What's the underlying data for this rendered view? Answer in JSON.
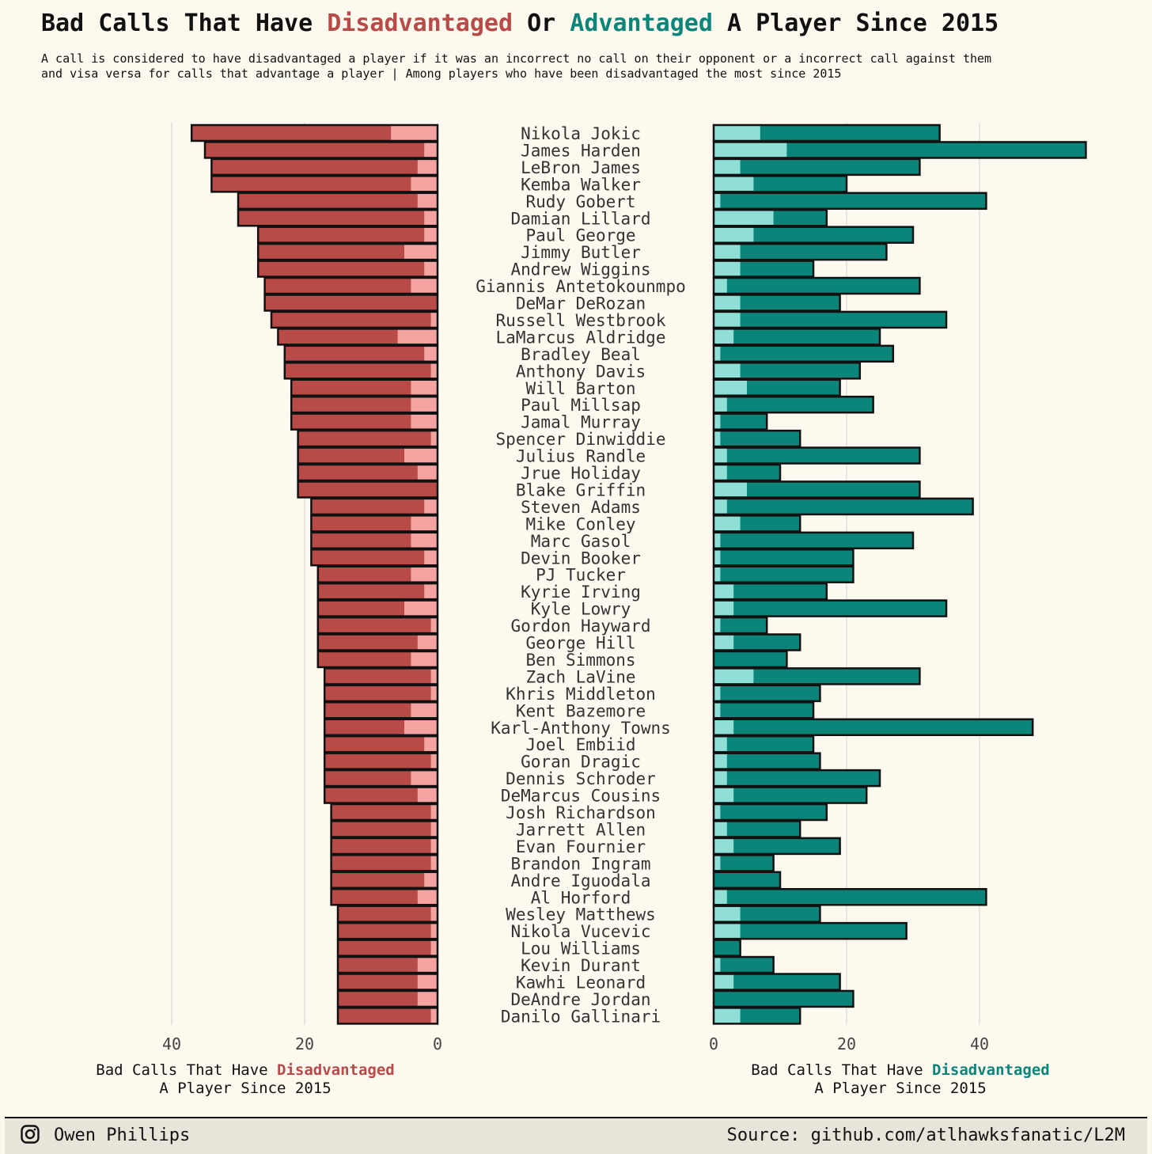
{
  "title": {
    "part1": "Bad Calls That Have ",
    "part2": "Disadvantaged",
    "part3": " Or ",
    "part4": "Advantaged",
    "part5": " A Player Since 2015"
  },
  "subtitle": {
    "line1": "A call is considered to have disadvantaged a player if it was an incorrect no call on their opponent or a incorrect call against them",
    "line2": "and visa versa for calls that advantage a player | Among players who have been disadvantaged the most since 2015"
  },
  "left_axis_title": {
    "part1": "Bad Calls That Have ",
    "part2": "Disadvantaged",
    "line2": "A Player Since 2015"
  },
  "right_axis_title": {
    "part1": "Bad Calls That Have ",
    "part2": "Disadvantaged",
    "line2": "A Player Since 2015"
  },
  "footer": {
    "author": "Owen Phillips",
    "source": "Source: github.com/atlhawksfanatic/L2M",
    "icon": "instagram-icon"
  },
  "colors": {
    "background": "#fdf9ef",
    "disadvantaged_dark": "#b84a48",
    "disadvantaged_light": "#f5a3a1",
    "advantaged_dark": "#0b8479",
    "advantaged_light": "#8fdfd6",
    "grid": "#e6e6e0"
  },
  "chart_data": [
    {
      "type": "bar",
      "orientation": "horizontal",
      "stacked": true,
      "side": "left",
      "xlim": [
        0,
        50
      ],
      "xticks": [
        40,
        20,
        0
      ],
      "xlabel": "Bad Calls That Have Disadvantaged A Player Since 2015",
      "categories": [
        "Nikola Jokic",
        "James Harden",
        "LeBron James",
        "Kemba Walker",
        "Rudy Gobert",
        "Damian Lillard",
        "Paul George",
        "Jimmy Butler",
        "Andrew Wiggins",
        "Giannis Antetokounmpo",
        "DeMar DeRozan",
        "Russell Westbrook",
        "LaMarcus Aldridge",
        "Bradley Beal",
        "Anthony Davis",
        "Will Barton",
        "Paul Millsap",
        "Jamal Murray",
        "Spencer Dinwiddie",
        "Julius Randle",
        "Jrue Holiday",
        "Blake Griffin",
        "Steven Adams",
        "Mike Conley",
        "Marc Gasol",
        "Devin Booker",
        "PJ Tucker",
        "Kyrie Irving",
        "Kyle Lowry",
        "Gordon Hayward",
        "George Hill",
        "Ben Simmons",
        "Zach LaVine",
        "Khris Middleton",
        "Kent Bazemore",
        "Karl-Anthony Towns",
        "Joel Embiid",
        "Goran Dragic",
        "Dennis Schroder",
        "DeMarcus Cousins",
        "Josh Richardson",
        "Jarrett Allen",
        "Evan Fournier",
        "Brandon Ingram",
        "Andre Iguodala",
        "Al Horford",
        "Wesley Matthews",
        "Nikola Vucevic",
        "Lou Williams",
        "Kevin Durant",
        "Kawhi Leonard",
        "DeAndre Jordan",
        "Danilo Gallinari"
      ],
      "series": [
        {
          "values": [
            37,
            35,
            34,
            34,
            30,
            30,
            27,
            27,
            27,
            26,
            26,
            25,
            24,
            23,
            23,
            22,
            22,
            22,
            21,
            21,
            21,
            21,
            19,
            19,
            19,
            19,
            18,
            18,
            18,
            18,
            18,
            18,
            17,
            17,
            17,
            17,
            17,
            17,
            17,
            17,
            16,
            16,
            16,
            16,
            16,
            16,
            15,
            15,
            15,
            15,
            15,
            15,
            15
          ]
        },
        {
          "values": [
            7,
            2,
            3,
            4,
            3,
            2,
            2,
            5,
            2,
            4,
            0,
            1,
            6,
            2,
            1,
            4,
            4,
            4,
            1,
            5,
            3,
            0,
            2,
            4,
            4,
            2,
            4,
            2,
            5,
            1,
            3,
            4,
            1,
            1,
            4,
            5,
            2,
            1,
            4,
            3,
            1,
            1,
            1,
            1,
            2,
            3,
            1,
            1,
            1,
            3,
            3,
            3,
            1
          ]
        }
      ]
    },
    {
      "type": "bar",
      "orientation": "horizontal",
      "stacked": true,
      "side": "right",
      "xlim": [
        0,
        57
      ],
      "xticks": [
        0,
        20,
        40
      ],
      "xlabel": "Bad Calls That Have Disadvantaged A Player Since 2015",
      "categories": [
        "Nikola Jokic",
        "James Harden",
        "LeBron James",
        "Kemba Walker",
        "Rudy Gobert",
        "Damian Lillard",
        "Paul George",
        "Jimmy Butler",
        "Andrew Wiggins",
        "Giannis Antetokounmpo",
        "DeMar DeRozan",
        "Russell Westbrook",
        "LaMarcus Aldridge",
        "Bradley Beal",
        "Anthony Davis",
        "Will Barton",
        "Paul Millsap",
        "Jamal Murray",
        "Spencer Dinwiddie",
        "Julius Randle",
        "Jrue Holiday",
        "Blake Griffin",
        "Steven Adams",
        "Mike Conley",
        "Marc Gasol",
        "Devin Booker",
        "PJ Tucker",
        "Kyrie Irving",
        "Kyle Lowry",
        "Gordon Hayward",
        "George Hill",
        "Ben Simmons",
        "Zach LaVine",
        "Khris Middleton",
        "Kent Bazemore",
        "Karl-Anthony Towns",
        "Joel Embiid",
        "Goran Dragic",
        "Dennis Schroder",
        "DeMarcus Cousins",
        "Josh Richardson",
        "Jarrett Allen",
        "Evan Fournier",
        "Brandon Ingram",
        "Andre Iguodala",
        "Al Horford",
        "Wesley Matthews",
        "Nikola Vucevic",
        "Lou Williams",
        "Kevin Durant",
        "Kawhi Leonard",
        "DeAndre Jordan",
        "Danilo Gallinari"
      ],
      "series": [
        {
          "values": [
            34,
            56,
            31,
            20,
            41,
            17,
            30,
            26,
            15,
            31,
            19,
            35,
            25,
            27,
            22,
            19,
            24,
            8,
            13,
            31,
            10,
            31,
            39,
            13,
            30,
            21,
            21,
            17,
            35,
            8,
            13,
            11,
            31,
            16,
            15,
            48,
            15,
            16,
            25,
            23,
            17,
            13,
            19,
            9,
            10,
            41,
            16,
            29,
            4,
            9,
            19,
            21,
            13
          ]
        },
        {
          "values": [
            7,
            11,
            4,
            6,
            1,
            9,
            6,
            4,
            4,
            2,
            4,
            4,
            3,
            1,
            4,
            5,
            2,
            1,
            1,
            2,
            2,
            5,
            2,
            4,
            1,
            1,
            1,
            3,
            3,
            1,
            3,
            0,
            6,
            1,
            1,
            3,
            2,
            2,
            2,
            3,
            1,
            2,
            3,
            1,
            0,
            2,
            4,
            4,
            0,
            1,
            3,
            0,
            4
          ]
        }
      ]
    }
  ]
}
